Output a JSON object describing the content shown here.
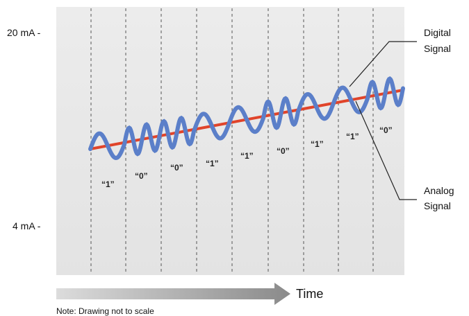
{
  "axis": {
    "top_label": "20 mA -",
    "bottom_label": "4 mA -"
  },
  "callouts": {
    "digital": [
      "Digital",
      "Signal"
    ],
    "analog": [
      "Analog",
      "Signal"
    ]
  },
  "bits": [
    "“1”",
    "“0”",
    "“0”",
    "“1”",
    "“1”",
    "“0”",
    "“1”",
    "“1”",
    "“0”"
  ],
  "time_label": "Time",
  "note": "Note: Drawing not to scale",
  "colors": {
    "panel": "#e8e8e8",
    "digital_wave": "#5b7fc9",
    "analog_line": "#e0442a",
    "divider": "#555555",
    "arrow_start": "#d9d9d9",
    "arrow_end": "#8c8c8c"
  }
}
